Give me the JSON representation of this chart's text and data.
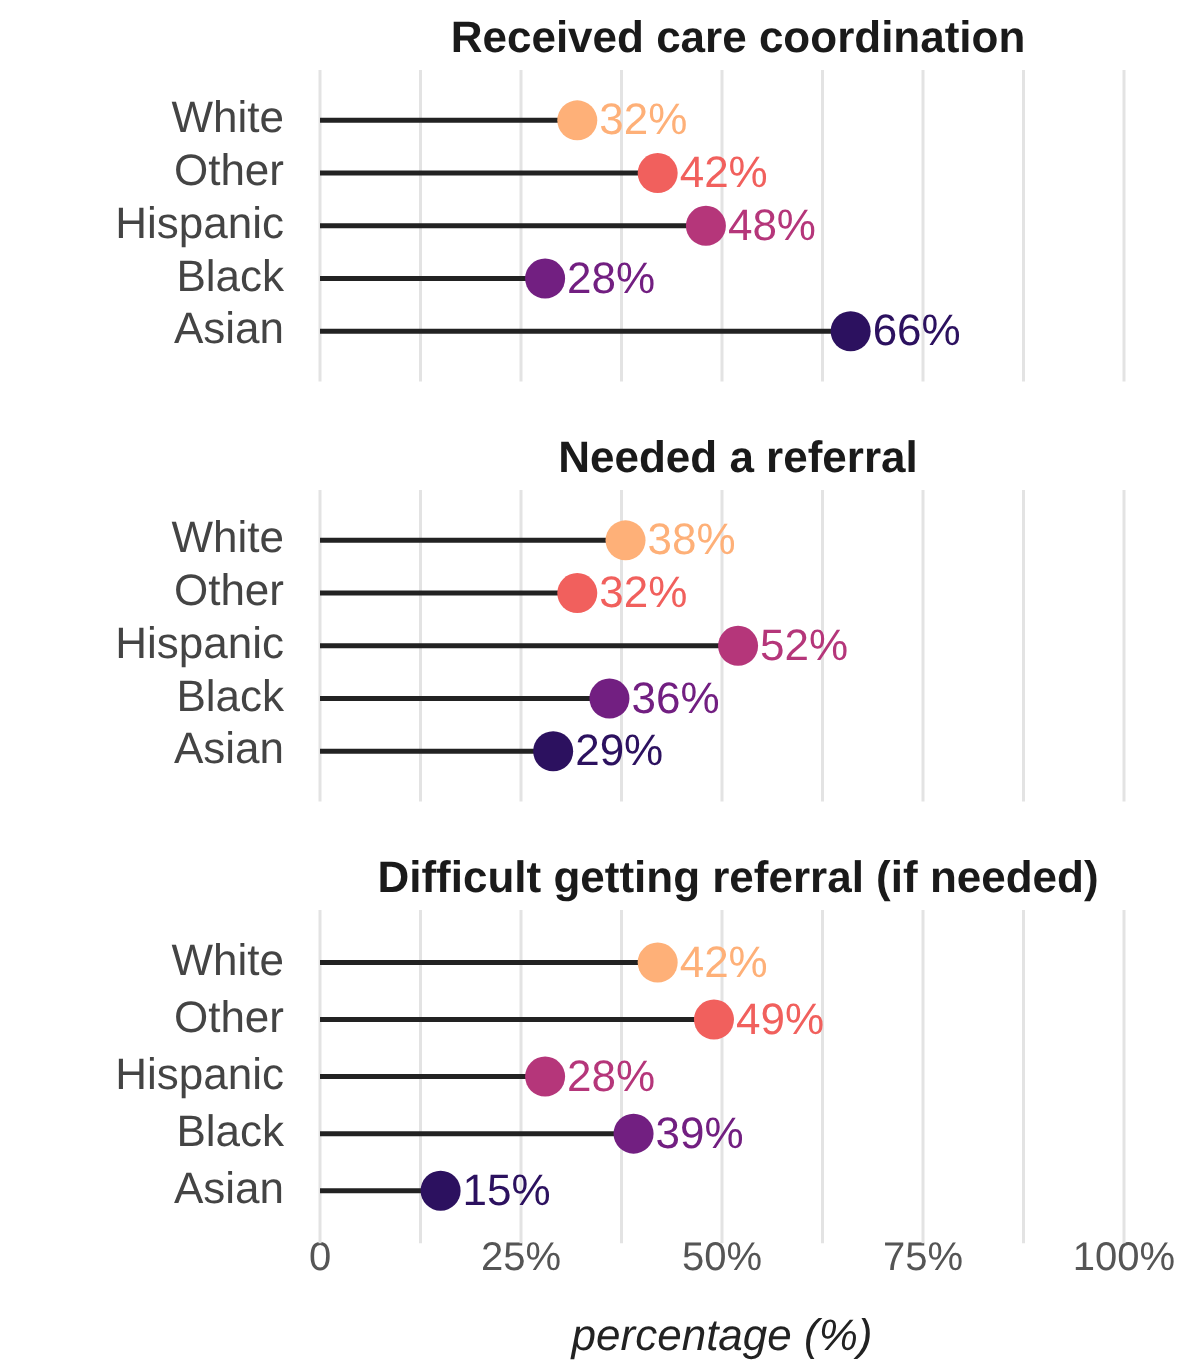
{
  "chart_data": [
    {
      "type": "lollipop",
      "title": "Received care coordination",
      "orientation": "horizontal",
      "categories": [
        "White",
        "Other",
        "Hispanic",
        "Black",
        "Asian"
      ],
      "values": [
        32,
        42,
        48,
        28,
        66
      ],
      "value_labels": [
        "32%",
        "42%",
        "48%",
        "28%",
        "66%"
      ],
      "colors": [
        "#feb078",
        "#f1605d",
        "#b5367a",
        "#721f81",
        "#2c115f"
      ],
      "xlim": [
        0,
        100
      ],
      "xticks": [
        {
          "value": 0,
          "label": null
        },
        {
          "value": 12.5,
          "label": null
        },
        {
          "value": 25,
          "label": null
        },
        {
          "value": 37.5,
          "label": null
        },
        {
          "value": 50,
          "label": null
        },
        {
          "value": 62.5,
          "label": null
        },
        {
          "value": 75,
          "label": null
        },
        {
          "value": 87.5,
          "label": null
        },
        {
          "value": 100,
          "label": null
        }
      ],
      "grid": "x",
      "tick_labels": "y"
    },
    {
      "type": "lollipop",
      "title": "Needed a referral",
      "orientation": "horizontal",
      "categories": [
        "White",
        "Other",
        "Hispanic",
        "Black",
        "Asian"
      ],
      "values": [
        38,
        32,
        52,
        36,
        29
      ],
      "value_labels": [
        "38%",
        "32%",
        "52%",
        "36%",
        "29%"
      ],
      "colors": [
        "#feb078",
        "#f1605d",
        "#b5367a",
        "#721f81",
        "#2c115f"
      ],
      "xlim": [
        0,
        100
      ],
      "xticks": [
        {
          "value": 0,
          "label": null
        },
        {
          "value": 12.5,
          "label": null
        },
        {
          "value": 25,
          "label": null
        },
        {
          "value": 37.5,
          "label": null
        },
        {
          "value": 50,
          "label": null
        },
        {
          "value": 62.5,
          "label": null
        },
        {
          "value": 75,
          "label": null
        },
        {
          "value": 87.5,
          "label": null
        },
        {
          "value": 100,
          "label": null
        }
      ],
      "grid": "x",
      "tick_labels": "y"
    },
    {
      "type": "lollipop",
      "title": "Difficult getting referral (if needed)",
      "orientation": "horizontal",
      "categories": [
        "White",
        "Other",
        "Hispanic",
        "Black",
        "Asian"
      ],
      "values": [
        42,
        49,
        28,
        39,
        15
      ],
      "value_labels": [
        "42%",
        "49%",
        "28%",
        "39%",
        "15%"
      ],
      "colors": [
        "#feb078",
        "#f1605d",
        "#b5367a",
        "#721f81",
        "#2c115f"
      ],
      "xlabel": "percentage (%)",
      "xlim": [
        0,
        100
      ],
      "xticks": [
        0,
        {
          "value": 12.5,
          "label": null
        },
        {
          "value": 25,
          "label": "25%"
        },
        {
          "value": 37.5,
          "label": null
        },
        {
          "value": 50,
          "label": "50%"
        },
        {
          "value": 62.5,
          "label": null
        },
        {
          "value": 75,
          "label": "75%"
        },
        {
          "value": 87.5,
          "label": null
        },
        {
          "value": 100,
          "label": "100%"
        }
      ],
      "grid": "x"
    }
  ]
}
